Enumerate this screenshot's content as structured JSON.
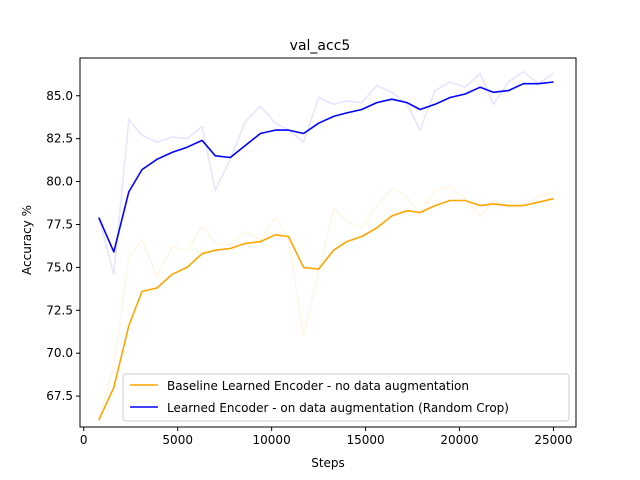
{
  "chart_data": {
    "type": "line",
    "title": "val_acc5",
    "xlabel": "Steps",
    "ylabel": "Accuracy %",
    "xlim": [
      -200,
      26200
    ],
    "ylim": [
      65.7,
      87.2
    ],
    "xticks": [
      0,
      5000,
      10000,
      15000,
      20000,
      25000
    ],
    "yticks": [
      67.5,
      70.0,
      72.5,
      75.0,
      77.5,
      80.0,
      82.5,
      85.0
    ],
    "xtick_labels": [
      "0",
      "5000",
      "10000",
      "15000",
      "20000",
      "25000"
    ],
    "ytick_labels": [
      "67.5",
      "70.0",
      "72.5",
      "75.0",
      "77.5",
      "80.0",
      "82.5",
      "85.0"
    ],
    "grid": false,
    "legend_position": "lower-right",
    "x": [
      800,
      1600,
      2400,
      3100,
      3900,
      4700,
      5500,
      6300,
      7000,
      7800,
      8600,
      9400,
      10200,
      10900,
      11700,
      12500,
      13300,
      14000,
      14800,
      15600,
      16400,
      17200,
      17900,
      18700,
      19500,
      20300,
      21100,
      21800,
      22600,
      23400,
      24200,
      25000
    ],
    "series": [
      {
        "name": "Baseline Learned Encoder - no data augmentation",
        "color": "#ffa500",
        "smoothed": [
          66.1,
          68.0,
          71.6,
          73.6,
          73.8,
          74.6,
          75.0,
          75.8,
          76.0,
          76.1,
          76.4,
          76.5,
          76.9,
          76.8,
          75.0,
          74.9,
          76.0,
          76.5,
          76.8,
          77.3,
          78.0,
          78.3,
          78.2,
          78.6,
          78.9,
          78.9,
          78.6,
          78.7,
          78.6,
          78.6,
          78.8,
          79.0
        ],
        "raw": [
          66.2,
          69.2,
          75.6,
          76.6,
          74.5,
          76.2,
          76.0,
          77.4,
          76.4,
          76.3,
          77.1,
          76.6,
          77.9,
          76.6,
          71.0,
          74.8,
          78.4,
          77.7,
          77.3,
          78.6,
          79.6,
          79.1,
          78.1,
          79.5,
          79.7,
          79.0,
          78.0,
          78.9,
          78.5,
          78.6,
          79.1,
          79.4
        ]
      },
      {
        "name": "Learned Encoder - on data augmentation (Random Crop)",
        "color": "#0000ff",
        "smoothed": [
          77.9,
          75.9,
          79.4,
          80.7,
          81.3,
          81.7,
          82.0,
          82.4,
          81.5,
          81.4,
          82.1,
          82.8,
          83.0,
          83.0,
          82.8,
          83.4,
          83.8,
          84.0,
          84.2,
          84.6,
          84.8,
          84.6,
          84.2,
          84.5,
          84.9,
          85.1,
          85.5,
          85.2,
          85.3,
          85.7,
          85.7,
          85.8
        ],
        "raw": [
          77.9,
          74.6,
          83.6,
          82.7,
          82.3,
          82.6,
          82.5,
          83.2,
          79.5,
          81.3,
          83.5,
          84.4,
          83.4,
          83.0,
          82.3,
          84.9,
          84.5,
          84.7,
          84.6,
          85.6,
          85.2,
          84.5,
          83.0,
          85.3,
          85.8,
          85.5,
          86.3,
          84.5,
          85.8,
          86.4,
          85.7,
          86.3
        ]
      }
    ]
  }
}
